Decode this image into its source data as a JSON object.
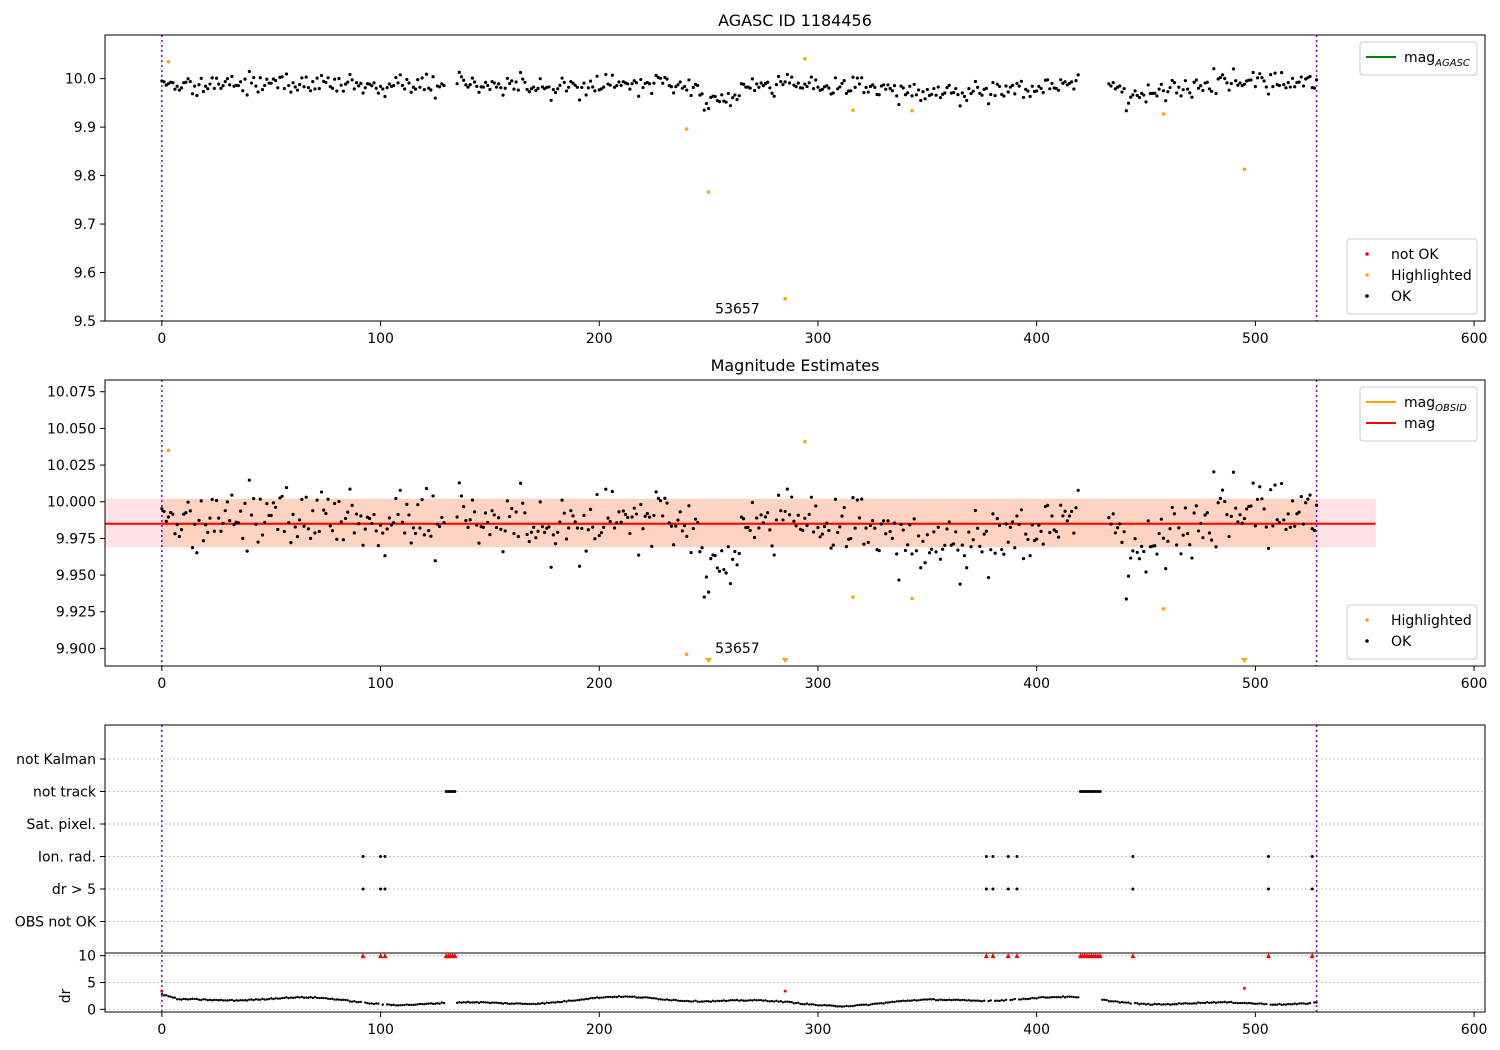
{
  "chart_data": [
    {
      "type": "scatter",
      "title": "AGASC ID 1184456",
      "xlim": [
        -26,
        605
      ],
      "ylim": [
        9.5,
        10.09
      ],
      "x_ticks": [
        0,
        100,
        200,
        300,
        400,
        500,
        600
      ],
      "y_ticks": [
        9.5,
        9.6,
        9.7,
        9.8,
        9.9,
        10.0
      ],
      "y_tick_decimals": 1,
      "vlines": [
        0,
        528
      ],
      "annotation": {
        "text": "53657",
        "x": 253,
        "y": 9.515
      },
      "legends": [
        {
          "placement": "top-right",
          "entries": [
            {
              "label": "mag",
              "sub": "AGASC",
              "kind": "line",
              "color": "#008000"
            }
          ]
        },
        {
          "placement": "bottom-right",
          "entries": [
            {
              "label": "not OK",
              "kind": "dot",
              "color": "#ff0000"
            },
            {
              "label": "Highlighted",
              "kind": "dot",
              "color": "#ffa500"
            },
            {
              "label": "OK",
              "kind": "dot",
              "color": "#000000"
            }
          ]
        }
      ],
      "series": [
        {
          "name": "Highlighted",
          "color": "#ffa500",
          "points": [
            [
              3,
              10.035
            ],
            [
              240,
              9.896
            ],
            [
              250,
              9.766
            ],
            [
              285,
              9.546
            ],
            [
              294,
              10.041
            ],
            [
              316,
              9.935
            ],
            [
              343,
              9.934
            ],
            [
              458,
              9.927
            ],
            [
              495,
              9.813
            ]
          ]
        },
        {
          "name": "OK",
          "color": "#000000",
          "generated": "ok_series"
        }
      ]
    },
    {
      "type": "scatter",
      "title": "Magnitude Estimates",
      "xlim": [
        -26,
        605
      ],
      "ylim": [
        9.888,
        10.083
      ],
      "x_ticks": [
        0,
        100,
        200,
        300,
        400,
        500,
        600
      ],
      "y_ticks": [
        9.9,
        9.925,
        9.95,
        9.975,
        10.0,
        10.025,
        10.05,
        10.075
      ],
      "y_tick_decimals": 3,
      "vlines": [
        0,
        528
      ],
      "annotation": {
        "text": "53657",
        "x": 253,
        "y": 9.897
      },
      "band_outer": {
        "x": [
          -26,
          555
        ],
        "y": [
          9.969,
          10.002
        ],
        "color": "#ffc8d2"
      },
      "band_inner": {
        "x": [
          0,
          528
        ],
        "y": [
          9.969,
          10.002
        ],
        "color": "#ffc8a8"
      },
      "mag_line": {
        "value": 9.985,
        "x": [
          -26,
          555
        ],
        "color": "#ff0000"
      },
      "mag_obsid_line": {
        "value": 9.985,
        "x": [
          0,
          528
        ],
        "color": "#ffa500"
      },
      "legends": [
        {
          "placement": "top-right",
          "entries": [
            {
              "label": "mag",
              "sub": "OBSID",
              "kind": "line",
              "color": "#ffa500"
            },
            {
              "label": "mag",
              "kind": "line",
              "color": "#ff0000"
            }
          ]
        },
        {
          "placement": "bottom-right",
          "entries": [
            {
              "label": "Highlighted",
              "kind": "dot",
              "color": "#ffa500"
            },
            {
              "label": "OK",
              "kind": "dot",
              "color": "#000000"
            }
          ]
        }
      ],
      "series": [
        {
          "name": "Highlighted",
          "color": "#ffa500",
          "points": [
            [
              3,
              10.035
            ],
            [
              240,
              9.896
            ],
            [
              294,
              10.041
            ],
            [
              316,
              9.935
            ],
            [
              343,
              9.934
            ],
            [
              458,
              9.927
            ]
          ]
        },
        {
          "name": "Highlighted (below axis)",
          "color": "#ffa500",
          "marker": "triangle-down",
          "points": [
            [
              250,
              9.89
            ],
            [
              285,
              9.89
            ],
            [
              495,
              9.89
            ]
          ]
        },
        {
          "name": "OK",
          "color": "#000000",
          "generated": "ok_series"
        }
      ]
    },
    {
      "type": "scatter",
      "xlim": [
        -26,
        605
      ],
      "vlines": [
        0,
        528
      ],
      "flag_rows": [
        "not Kalman",
        "not track",
        "Sat. pixel.",
        "Ion. rad.",
        "dr > 5",
        "OBS not OK"
      ],
      "flags": {
        "not track": [
          130,
          131,
          132,
          133,
          134,
          420,
          421,
          422,
          423,
          424,
          425,
          426,
          427,
          428,
          429
        ],
        "Ion. rad.": [
          92,
          100,
          102,
          377,
          380,
          387,
          391,
          444,
          506,
          526
        ],
        "dr > 5": [
          92,
          100,
          102,
          377,
          380,
          387,
          391,
          444,
          506,
          526
        ]
      },
      "dr_panel": {
        "ylabel": "dr",
        "ylim": [
          -0.5,
          10.5
        ],
        "y_ticks": [
          0,
          5,
          10
        ],
        "clip_marker_x": [
          92,
          100,
          102,
          130,
          131,
          132,
          133,
          134,
          377,
          380,
          387,
          391,
          420,
          421,
          422,
          423,
          424,
          425,
          426,
          427,
          428,
          429,
          444,
          506,
          526
        ],
        "outliers": [
          [
            0,
            3.4
          ],
          [
            285,
            3.4
          ],
          [
            495,
            3.9
          ]
        ]
      },
      "x_ticks": [
        0,
        100,
        200,
        300,
        400,
        500,
        600
      ]
    }
  ]
}
